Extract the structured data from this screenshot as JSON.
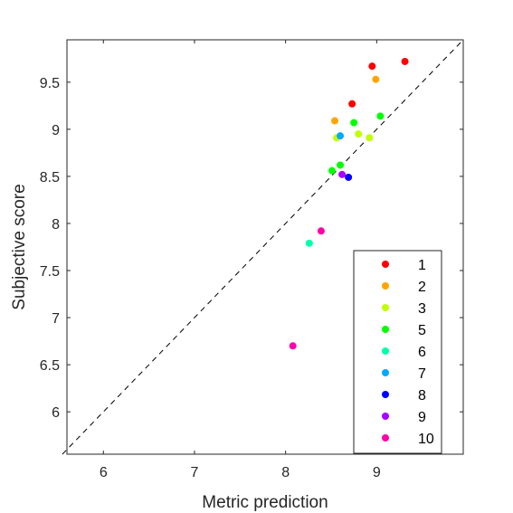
{
  "chart_data": {
    "type": "scatter",
    "title": "",
    "xlabel": "Metric prediction",
    "ylabel": "Subjective score",
    "xlim": [
      5.6,
      9.95
    ],
    "ylim": [
      5.55,
      9.95
    ],
    "xticks": [
      6,
      7,
      8,
      9
    ],
    "yticks": [
      6,
      6.5,
      7,
      7.5,
      8,
      8.5,
      9,
      9.5
    ],
    "xtick_labels": [
      "6",
      "7",
      "8",
      "9"
    ],
    "ytick_labels": [
      "6",
      "6.5",
      "7",
      "7.5",
      "8",
      "8.5",
      "9",
      "9.5"
    ],
    "reference_line": {
      "style": "dashed",
      "x": [
        5.55,
        9.95
      ],
      "y": [
        5.55,
        9.95
      ]
    },
    "grid": false,
    "box": true,
    "legend_position": "bottom-right",
    "series": [
      {
        "name": "1",
        "color": "#ff0000",
        "points": [
          [
            8.95,
            9.67
          ],
          [
            9.31,
            9.72
          ],
          [
            8.73,
            9.27
          ]
        ]
      },
      {
        "name": "2",
        "color": "#ffa500",
        "points": [
          [
            8.99,
            9.53
          ],
          [
            8.54,
            9.09
          ]
        ]
      },
      {
        "name": "3",
        "color": "#bfff00",
        "points": [
          [
            8.56,
            8.91
          ],
          [
            8.8,
            8.95
          ],
          [
            8.92,
            8.91
          ]
        ]
      },
      {
        "name": "5",
        "color": "#00ff00",
        "points": [
          [
            8.75,
            9.07
          ],
          [
            9.04,
            9.14
          ],
          [
            8.6,
            8.62
          ],
          [
            8.51,
            8.56
          ]
        ]
      },
      {
        "name": "6",
        "color": "#00ffaa",
        "points": [
          [
            8.26,
            7.79
          ]
        ]
      },
      {
        "name": "7",
        "color": "#00aaff",
        "points": [
          [
            8.6,
            8.93
          ]
        ]
      },
      {
        "name": "8",
        "color": "#0000ff",
        "points": [
          [
            8.69,
            8.49
          ]
        ]
      },
      {
        "name": "9",
        "color": "#aa00ff",
        "points": [
          [
            8.62,
            8.52
          ]
        ]
      },
      {
        "name": "10",
        "color": "#ff00aa",
        "points": [
          [
            8.39,
            7.92
          ],
          [
            8.08,
            6.7
          ]
        ]
      }
    ]
  }
}
